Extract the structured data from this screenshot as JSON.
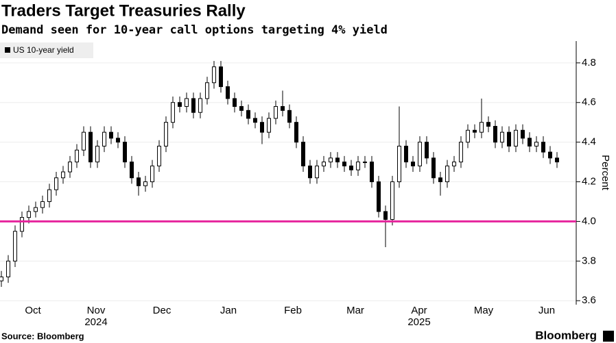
{
  "chart_data": {
    "type": "candlestick",
    "title": "Traders Target Treasuries Rally",
    "subtitle": "Demand seen for 10-year call options targeting 4% yield",
    "y_label": "Percent",
    "source": "Source: Bloomberg",
    "brand": "Bloomberg",
    "series": [
      {
        "name": "US 10-year yield",
        "color": "#000000",
        "open": [
          3.7,
          3.72,
          3.8,
          3.95,
          4.02,
          4.05,
          4.07,
          4.1,
          4.16,
          4.22,
          4.25,
          4.3,
          4.36,
          4.45,
          4.3,
          4.38,
          4.45,
          4.42,
          4.4,
          4.3,
          4.22,
          4.18,
          4.2,
          4.28,
          4.38,
          4.5,
          4.6,
          4.58,
          4.62,
          4.55,
          4.62,
          4.7,
          4.78,
          4.68,
          4.62,
          4.58,
          4.56,
          4.52,
          4.5,
          4.45,
          4.52,
          4.58,
          4.56,
          4.5,
          4.4,
          4.28,
          4.22,
          4.28,
          4.3,
          4.32,
          4.3,
          4.28,
          4.26,
          4.3,
          4.3,
          4.2,
          4.05,
          4.01,
          4.2,
          4.38,
          4.3,
          4.28,
          4.4,
          4.32,
          4.22,
          4.2,
          4.28,
          4.3,
          4.4,
          4.46,
          4.45,
          4.5,
          4.48,
          4.4,
          4.45,
          4.38,
          4.46,
          4.42,
          4.38,
          4.4,
          4.35,
          4.32
        ],
        "high": [
          3.75,
          3.83,
          3.98,
          4.05,
          4.08,
          4.1,
          4.13,
          4.19,
          4.25,
          4.28,
          4.33,
          4.39,
          4.48,
          4.48,
          4.41,
          4.48,
          4.48,
          4.45,
          4.43,
          4.33,
          4.25,
          4.23,
          4.31,
          4.41,
          4.53,
          4.63,
          4.63,
          4.65,
          4.65,
          4.65,
          4.73,
          4.81,
          4.81,
          4.71,
          4.65,
          4.61,
          4.59,
          4.55,
          4.53,
          4.55,
          4.61,
          4.66,
          4.59,
          4.53,
          4.43,
          4.31,
          4.31,
          4.33,
          4.35,
          4.35,
          4.33,
          4.31,
          4.33,
          4.33,
          4.33,
          4.23,
          4.08,
          4.23,
          4.58,
          4.41,
          4.33,
          4.43,
          4.43,
          4.35,
          4.25,
          4.31,
          4.33,
          4.43,
          4.49,
          4.49,
          4.62,
          4.53,
          4.51,
          4.48,
          4.48,
          4.49,
          4.49,
          4.45,
          4.43,
          4.43,
          4.38,
          4.35
        ],
        "low": [
          3.67,
          3.69,
          3.77,
          3.92,
          3.99,
          4.02,
          4.04,
          4.07,
          4.13,
          4.19,
          4.22,
          4.27,
          4.33,
          4.27,
          4.27,
          4.35,
          4.39,
          4.37,
          4.27,
          4.19,
          4.13,
          4.15,
          4.17,
          4.25,
          4.35,
          4.47,
          4.55,
          4.55,
          4.52,
          4.52,
          4.59,
          4.67,
          4.65,
          4.59,
          4.55,
          4.53,
          4.49,
          4.47,
          4.39,
          4.42,
          4.49,
          4.53,
          4.47,
          4.37,
          4.25,
          4.19,
          4.19,
          4.25,
          4.27,
          4.27,
          4.25,
          4.23,
          4.23,
          4.27,
          4.17,
          4.02,
          3.87,
          3.98,
          4.17,
          4.27,
          4.25,
          4.25,
          4.29,
          4.19,
          4.13,
          4.17,
          4.25,
          4.27,
          4.37,
          4.42,
          4.42,
          4.45,
          4.37,
          4.37,
          4.35,
          4.35,
          4.39,
          4.35,
          4.35,
          4.32,
          4.29,
          4.27
        ],
        "close": [
          3.72,
          3.8,
          3.95,
          4.02,
          4.05,
          4.07,
          4.1,
          4.16,
          4.22,
          4.25,
          4.3,
          4.36,
          4.45,
          4.3,
          4.38,
          4.45,
          4.42,
          4.4,
          4.3,
          4.22,
          4.18,
          4.2,
          4.28,
          4.38,
          4.5,
          4.6,
          4.58,
          4.62,
          4.55,
          4.62,
          4.7,
          4.78,
          4.68,
          4.62,
          4.58,
          4.56,
          4.52,
          4.5,
          4.45,
          4.52,
          4.58,
          4.56,
          4.5,
          4.4,
          4.28,
          4.22,
          4.28,
          4.3,
          4.32,
          4.3,
          4.28,
          4.26,
          4.3,
          4.3,
          4.2,
          4.05,
          4.01,
          4.2,
          4.38,
          4.3,
          4.28,
          4.4,
          4.32,
          4.22,
          4.2,
          4.28,
          4.3,
          4.4,
          4.46,
          4.45,
          4.5,
          4.48,
          4.4,
          4.45,
          4.38,
          4.46,
          4.42,
          4.38,
          4.4,
          4.35,
          4.32,
          4.3
        ]
      }
    ],
    "xlim": [
      -0.2,
      83.8
    ],
    "xticks": [
      {
        "value": 4.6,
        "label": "Oct"
      },
      {
        "value": 13.8,
        "label": "Nov"
      },
      {
        "value": 23.4,
        "label": "Dec"
      },
      {
        "value": 33.1,
        "label": "Jan"
      },
      {
        "value": 42.5,
        "label": "Feb"
      },
      {
        "value": 51.6,
        "label": "Mar"
      },
      {
        "value": 60.9,
        "label": "Apr"
      },
      {
        "value": 70.3,
        "label": "May"
      },
      {
        "value": 79.5,
        "label": "Jun"
      }
    ],
    "year_labels": [
      {
        "value": 13.8,
        "label": "2024"
      },
      {
        "value": 60.9,
        "label": "2025"
      }
    ],
    "ylim": [
      3.58,
      4.91
    ],
    "yticks": [
      3.6,
      3.8,
      {
        "value": 4,
        "label": "4.0"
      },
      4.2,
      4.4,
      4.6,
      4.8
    ],
    "reference_line": {
      "value": 4,
      "color": "#e6239c"
    },
    "grid": true
  }
}
